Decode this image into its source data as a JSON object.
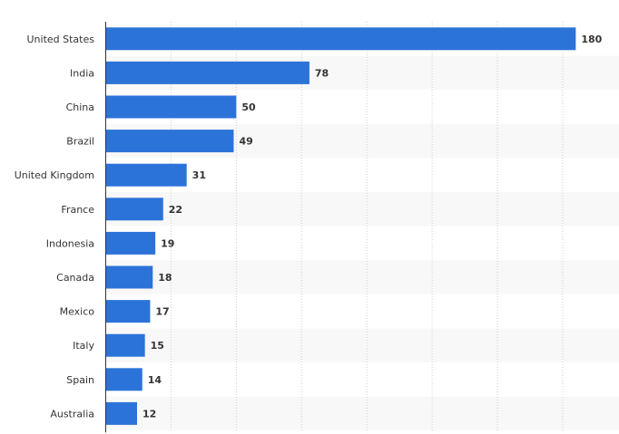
{
  "chart_data": {
    "type": "bar",
    "orientation": "horizontal",
    "categories": [
      "United States",
      "India",
      "China",
      "Brazil",
      "United Kingdom",
      "France",
      "Indonesia",
      "Canada",
      "Mexico",
      "Italy",
      "Spain",
      "Australia"
    ],
    "values": [
      180,
      78,
      50,
      49,
      31,
      22,
      19,
      18,
      17,
      15,
      14,
      12
    ],
    "value_labels": [
      "180",
      "78",
      "50",
      "49",
      "31",
      "22",
      "19",
      "18",
      "17",
      "15",
      "14",
      "12"
    ],
    "title": "",
    "xlabel": "",
    "ylabel": "",
    "xlim": [
      0,
      200
    ],
    "grid": true,
    "grid_style": "dotted vertical",
    "legend": "none",
    "bar_color": "#2c73d9",
    "band_color": "#f8f8f8"
  }
}
